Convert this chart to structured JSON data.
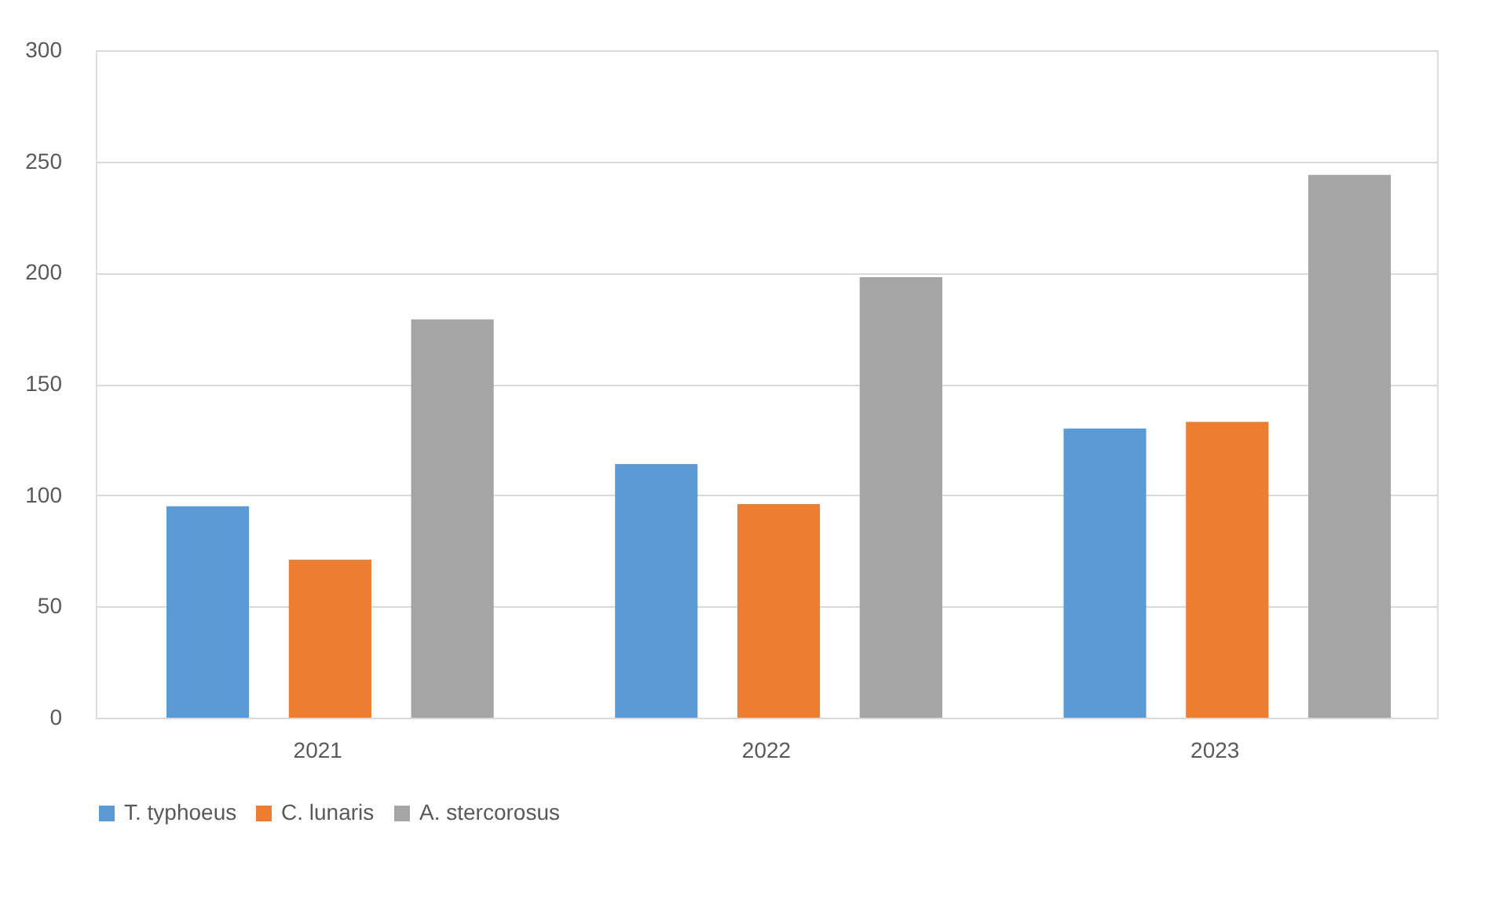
{
  "chart_data": {
    "type": "bar",
    "categories": [
      "2021",
      "2022",
      "2023"
    ],
    "series": [
      {
        "name": "T. typhoeus",
        "color": "#5b9bd5",
        "values": [
          95,
          114,
          130
        ]
      },
      {
        "name": "C. lunaris",
        "color": "#ed7d31",
        "values": [
          71,
          96,
          133
        ]
      },
      {
        "name": "A. stercorosus",
        "color": "#a5a5a5",
        "values": [
          179,
          198,
          244
        ]
      }
    ],
    "ylim": [
      0,
      300
    ],
    "yticks": [
      0,
      50,
      100,
      150,
      200,
      250,
      300
    ],
    "grid": "y",
    "legend": "bottom"
  }
}
